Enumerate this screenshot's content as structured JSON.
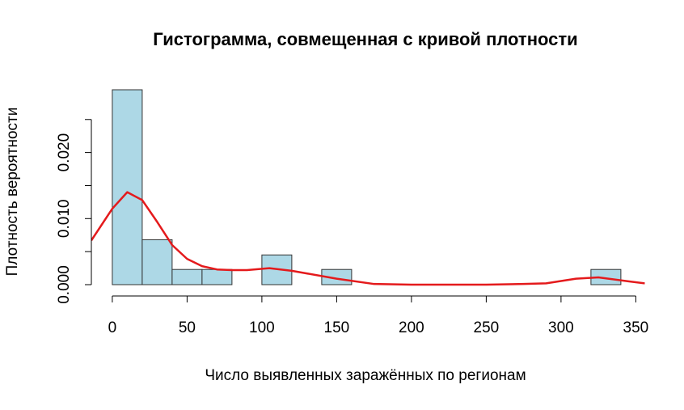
{
  "chart_data": {
    "type": "histogram",
    "title": "Гистограмма, совмещенная с кривой плотности",
    "xlabel": "Число выявленных заражённых по регионам",
    "ylabel": "Плотность вероятности",
    "bins": [
      0,
      20,
      40,
      60,
      80,
      100,
      120,
      140,
      160,
      180,
      200,
      220,
      240,
      260,
      280,
      300,
      320,
      340
    ],
    "values": [
      0.0295,
      0.0068,
      0.0023,
      0.0023,
      0,
      0.0045,
      0,
      0.0023,
      0,
      0,
      0,
      0,
      0,
      0,
      0,
      0,
      0.0023
    ],
    "color": "#add8e6",
    "density": {
      "x": [
        -14,
        0,
        10,
        20,
        30,
        40,
        50,
        60,
        70,
        80,
        90,
        105,
        120,
        130,
        150,
        175,
        200,
        250,
        275,
        290,
        310,
        325,
        345,
        356
      ],
      "values": [
        0.0067,
        0.0115,
        0.014,
        0.0128,
        0.0095,
        0.006,
        0.0039,
        0.0028,
        0.0023,
        0.0022,
        0.0022,
        0.0025,
        0.0021,
        0.0017,
        0.0009,
        0.0001,
        0,
        0,
        0.0001,
        0.0002,
        0.0009,
        0.0011,
        0.0005,
        0.0002
      ],
      "color": "#e41a1c"
    },
    "xlim": [
      -14,
      356
    ],
    "ylim": [
      0,
      0.0295
    ],
    "xticks": [
      0,
      50,
      100,
      150,
      200,
      250,
      300,
      350
    ],
    "yticks": [
      {
        "value": 0,
        "label": "0.000"
      },
      {
        "value": 0.01,
        "label": "0.010"
      },
      {
        "value": 0.02,
        "label": "0.020"
      }
    ],
    "yminor_ticks": [
      0.005,
      0.015,
      0.025
    ]
  }
}
